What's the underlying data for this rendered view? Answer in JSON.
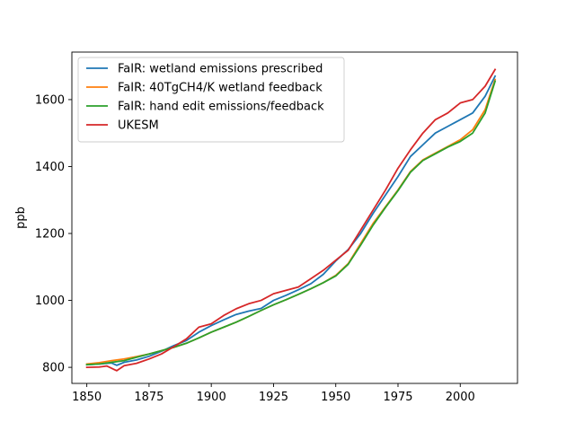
{
  "chart_data": {
    "type": "line",
    "title": "",
    "xlabel": "",
    "ylabel": "ppb",
    "xlim": [
      1844,
      2023
    ],
    "ylim": [
      752,
      1742
    ],
    "xticks": [
      1850,
      1875,
      1900,
      1925,
      1950,
      1975,
      2000
    ],
    "yticks": [
      800,
      1000,
      1200,
      1400,
      1600
    ],
    "grid": false,
    "legend_position": "top-left",
    "series": [
      {
        "name": "FaIR: wetland emissions prescribed",
        "color": "#1f77b4",
        "x": [
          1850,
          1855,
          1860,
          1862,
          1865,
          1870,
          1875,
          1880,
          1885,
          1890,
          1895,
          1900,
          1905,
          1910,
          1915,
          1920,
          1925,
          1930,
          1935,
          1940,
          1945,
          1950,
          1955,
          1960,
          1965,
          1970,
          1975,
          1980,
          1985,
          1990,
          1995,
          2000,
          2005,
          2010,
          2014
        ],
        "y": [
          808,
          810,
          813,
          806,
          815,
          822,
          833,
          848,
          865,
          880,
          905,
          925,
          942,
          958,
          968,
          976,
          1000,
          1015,
          1032,
          1050,
          1078,
          1118,
          1152,
          1200,
          1260,
          1315,
          1370,
          1430,
          1465,
          1500,
          1520,
          1540,
          1560,
          1610,
          1670
        ]
      },
      {
        "name": "FaIR: 40TgCH4/K wetland feedback",
        "color": "#ff7f0e",
        "x": [
          1850,
          1855,
          1860,
          1865,
          1870,
          1875,
          1880,
          1885,
          1890,
          1895,
          1900,
          1905,
          1910,
          1915,
          1920,
          1925,
          1930,
          1935,
          1940,
          1945,
          1950,
          1955,
          1960,
          1965,
          1970,
          1975,
          1980,
          1985,
          1990,
          1995,
          2000,
          2005,
          2010,
          2014
        ],
        "y": [
          810,
          814,
          820,
          825,
          832,
          840,
          850,
          860,
          872,
          888,
          905,
          920,
          935,
          952,
          970,
          987,
          1002,
          1018,
          1035,
          1053,
          1075,
          1110,
          1170,
          1230,
          1280,
          1330,
          1385,
          1420,
          1440,
          1460,
          1480,
          1510,
          1570,
          1660
        ]
      },
      {
        "name": "FaIR: hand edit emissions/feedback",
        "color": "#2ca02c",
        "x": [
          1850,
          1855,
          1860,
          1865,
          1870,
          1875,
          1880,
          1885,
          1890,
          1895,
          1900,
          1905,
          1910,
          1915,
          1920,
          1925,
          1930,
          1935,
          1940,
          1945,
          1950,
          1955,
          1960,
          1965,
          1970,
          1975,
          1980,
          1985,
          1990,
          1995,
          2000,
          2005,
          2010,
          2014
        ],
        "y": [
          808,
          810,
          815,
          820,
          830,
          840,
          850,
          860,
          872,
          888,
          905,
          920,
          935,
          952,
          970,
          987,
          1002,
          1018,
          1035,
          1053,
          1073,
          1108,
          1165,
          1225,
          1278,
          1328,
          1383,
          1418,
          1438,
          1458,
          1475,
          1500,
          1560,
          1655
        ]
      },
      {
        "name": "UKESM",
        "color": "#d62728",
        "x": [
          1850,
          1855,
          1858,
          1860,
          1862,
          1865,
          1870,
          1875,
          1880,
          1885,
          1890,
          1895,
          1900,
          1905,
          1910,
          1915,
          1920,
          1925,
          1930,
          1935,
          1940,
          1945,
          1950,
          1955,
          1960,
          1965,
          1970,
          1975,
          1980,
          1985,
          1990,
          1995,
          2000,
          2005,
          2010,
          2014
        ],
        "y": [
          800,
          801,
          804,
          797,
          790,
          805,
          812,
          825,
          840,
          862,
          885,
          920,
          930,
          955,
          975,
          990,
          1000,
          1020,
          1030,
          1040,
          1065,
          1090,
          1120,
          1150,
          1210,
          1270,
          1330,
          1395,
          1450,
          1500,
          1540,
          1560,
          1590,
          1600,
          1640,
          1690
        ]
      }
    ]
  }
}
